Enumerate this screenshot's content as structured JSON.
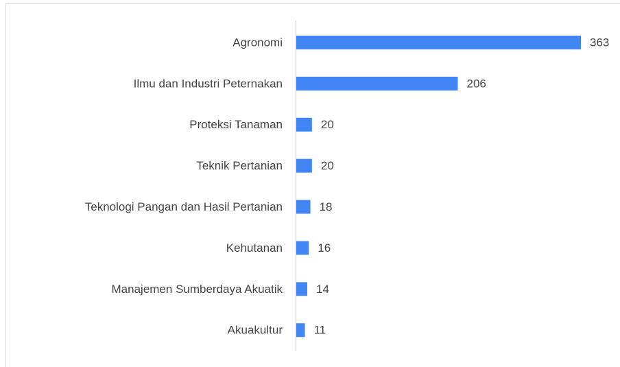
{
  "chart_data": {
    "type": "hbar",
    "categories": [
      "Agronomi",
      "Ilmu dan Industri Peternakan",
      "Proteksi Tanaman",
      "Teknik Pertanian",
      "Teknologi Pangan dan Hasil Pertanian",
      "Kehutanan",
      "Manajemen Sumberdaya Akuatik",
      "Akuakultur"
    ],
    "values": [
      363,
      206,
      20,
      20,
      18,
      16,
      14,
      11
    ],
    "color": "#4285f4",
    "xlim": [
      0,
      363
    ]
  }
}
